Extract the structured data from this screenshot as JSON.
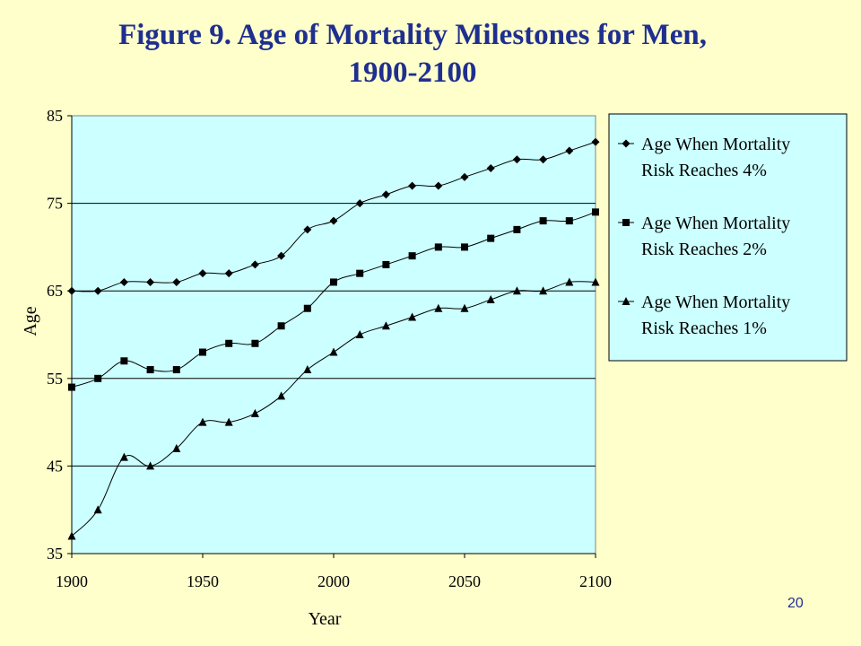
{
  "slide": {
    "title_line1": "Figure 9.  Age of Mortality Milestones for Men,",
    "title_line2": "1900-2100",
    "page_number": "20",
    "title_color": "#1f2f8f",
    "background_color": "#ffffcc"
  },
  "chart_data": {
    "type": "line",
    "title": "Figure 9.  Age of Mortality Milestones for Men, 1900-2100",
    "xlabel": "Year",
    "ylabel": "Age",
    "xlim": [
      1900,
      2100
    ],
    "ylim": [
      35,
      85
    ],
    "xticks": [
      "1900",
      "1950",
      "2000",
      "2050",
      "2100"
    ],
    "yticks": [
      "35",
      "45",
      "55",
      "65",
      "75",
      "85"
    ],
    "grid": "horizontal",
    "plot_background": "#ccffff",
    "legend_position": "right",
    "x": [
      1900,
      1910,
      1920,
      1930,
      1940,
      1950,
      1960,
      1970,
      1980,
      1990,
      2000,
      2010,
      2020,
      2030,
      2040,
      2050,
      2060,
      2070,
      2080,
      2090,
      2100
    ],
    "series": [
      {
        "name": "Age When Mortality Risk Reaches 4%",
        "legend_lines": [
          "Age When Mortality",
          "Risk Reaches 4%"
        ],
        "marker": "diamond",
        "values": [
          65,
          65,
          66,
          66,
          66,
          67,
          67,
          68,
          69,
          72,
          73,
          75,
          76,
          77,
          77,
          78,
          79,
          80,
          80,
          81,
          82
        ]
      },
      {
        "name": "Age When Mortality Risk Reaches 2%",
        "legend_lines": [
          "Age When Mortality",
          "Risk Reaches 2%"
        ],
        "marker": "square",
        "values": [
          54,
          55,
          57,
          56,
          56,
          58,
          59,
          59,
          61,
          63,
          66,
          67,
          68,
          69,
          70,
          70,
          71,
          72,
          73,
          73,
          74
        ]
      },
      {
        "name": "Age When Mortality Risk Reaches 1%",
        "legend_lines": [
          "Age When Mortality",
          "Risk Reaches 1%"
        ],
        "marker": "triangle",
        "values": [
          37,
          40,
          46,
          45,
          47,
          50,
          50,
          51,
          53,
          56,
          58,
          60,
          61,
          62,
          63,
          63,
          64,
          65,
          65,
          66,
          66
        ]
      }
    ]
  }
}
